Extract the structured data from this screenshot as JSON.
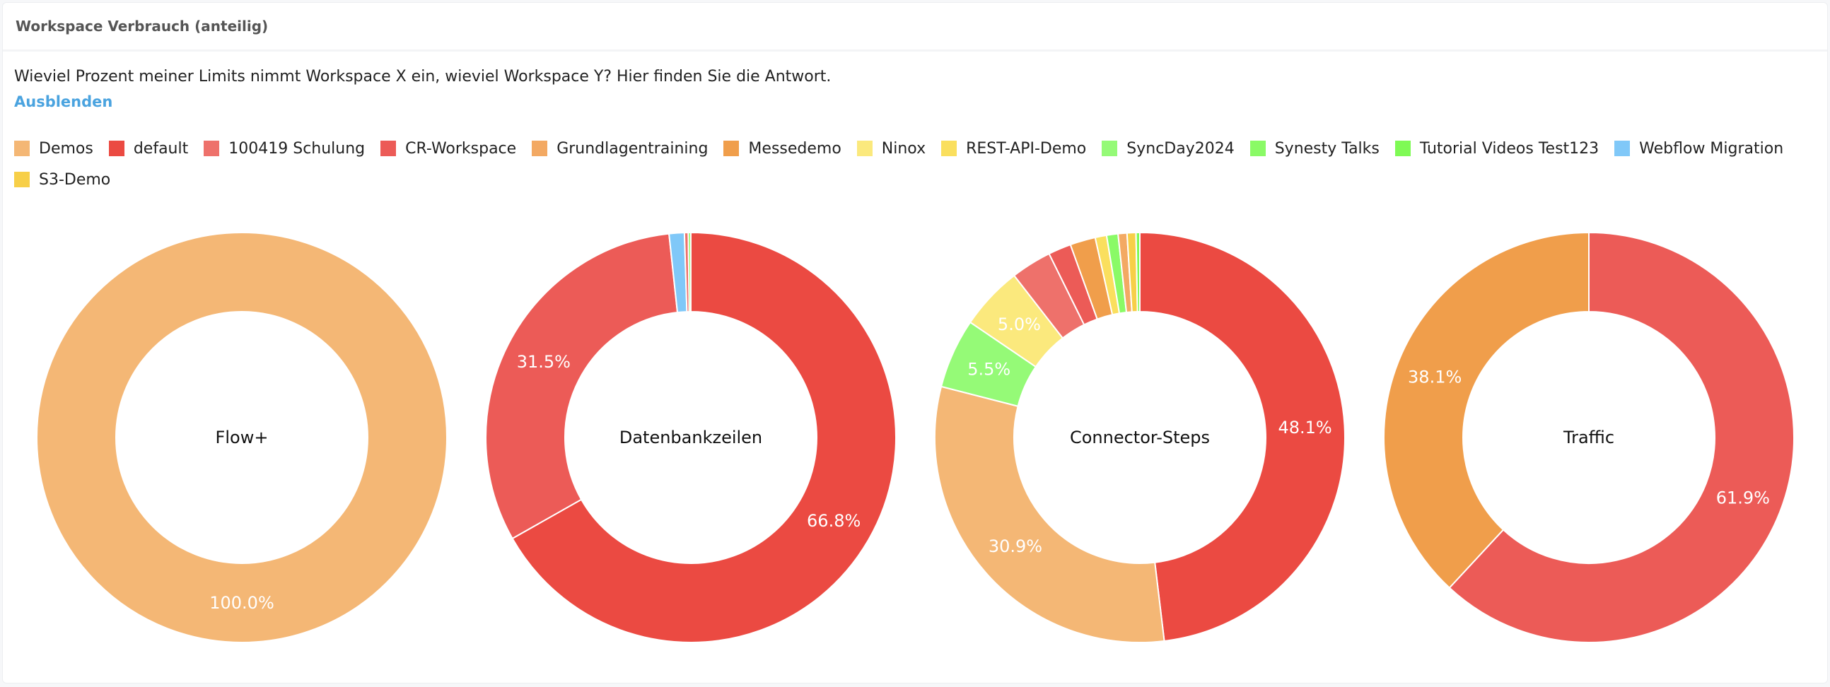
{
  "card": {
    "title": "Workspace Verbrauch (anteilig)",
    "description": "Wieviel Prozent meiner Limits nimmt Workspace X ein, wieviel Workspace Y? Hier finden Sie die Antwort.",
    "toggle_label": "Ausblenden"
  },
  "legend": [
    {
      "name": "Demos",
      "color": "#f4b775"
    },
    {
      "name": "default",
      "color": "#eb4a42"
    },
    {
      "name": "100419 Schulung",
      "color": "#ee716b"
    },
    {
      "name": "CR-Workspace",
      "color": "#ec5b57"
    },
    {
      "name": "Grundlagentraining",
      "color": "#f3a963"
    },
    {
      "name": "Messedemo",
      "color": "#f09e4b"
    },
    {
      "name": "Ninox",
      "color": "#fbe97d"
    },
    {
      "name": "REST-API-Demo",
      "color": "#fadf5e"
    },
    {
      "name": "SyncDay2024",
      "color": "#95fa77"
    },
    {
      "name": "Synesty Talks",
      "color": "#8afa66"
    },
    {
      "name": "Tutorial Videos Test123",
      "color": "#7ffa55"
    },
    {
      "name": "Webflow Migration",
      "color": "#80c8f8"
    },
    {
      "name": "S3-Demo",
      "color": "#f7cf48"
    }
  ],
  "chart_data": [
    {
      "type": "pie",
      "title": "Flow+",
      "slices": [
        {
          "name": "Demos",
          "value": 100.0
        }
      ]
    },
    {
      "type": "pie",
      "title": "Datenbankzeilen",
      "slices": [
        {
          "name": "default",
          "value": 66.8
        },
        {
          "name": "CR-Workspace",
          "value": 31.5
        },
        {
          "name": "Webflow Migration",
          "value": 1.2
        },
        {
          "name": "100419 Schulung",
          "value": 0.3
        },
        {
          "name": "Synesty Talks",
          "value": 0.2
        }
      ]
    },
    {
      "type": "pie",
      "title": "Connector-Steps",
      "slices": [
        {
          "name": "default",
          "value": 48.1
        },
        {
          "name": "Demos",
          "value": 30.9
        },
        {
          "name": "SyncDay2024",
          "value": 5.5
        },
        {
          "name": "Ninox",
          "value": 5.0
        },
        {
          "name": "100419 Schulung",
          "value": 3.2
        },
        {
          "name": "CR-Workspace",
          "value": 1.8
        },
        {
          "name": "Messedemo",
          "value": 2.0
        },
        {
          "name": "REST-API-Demo",
          "value": 0.9
        },
        {
          "name": "Synesty Talks",
          "value": 0.9
        },
        {
          "name": "Grundlagentraining",
          "value": 0.7
        },
        {
          "name": "S3-Demo",
          "value": 0.7
        },
        {
          "name": "Tutorial Videos Test123",
          "value": 0.3
        }
      ]
    },
    {
      "type": "pie",
      "title": "Traffic",
      "slices": [
        {
          "name": "CR-Workspace",
          "value": 61.9
        },
        {
          "name": "Messedemo",
          "value": 38.1
        }
      ]
    }
  ]
}
